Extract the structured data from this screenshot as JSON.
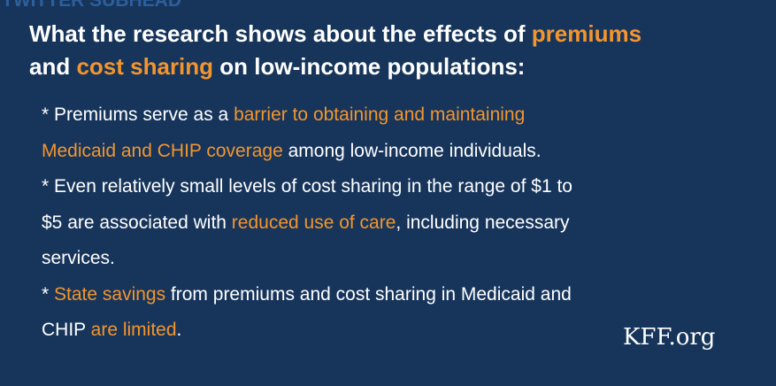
{
  "subhead": "TWITTER SUBHEAD",
  "heading": {
    "lines": [
      [
        {
          "text": "What the research shows about the effects of ",
          "accent": false
        },
        {
          "text": "premiums",
          "accent": true
        }
      ],
      [
        {
          "text": "and ",
          "accent": false
        },
        {
          "text": "cost sharing",
          "accent": true
        },
        {
          "text": " on low-income populations:",
          "accent": false
        }
      ]
    ]
  },
  "bullets": [
    {
      "lines": [
        [
          {
            "text": "* Premiums serve as a ",
            "accent": false
          },
          {
            "text": "barrier to obtaining and maintaining",
            "accent": true
          }
        ],
        [
          {
            "text": "Medicaid and CHIP coverage",
            "accent": true
          },
          {
            "text": " among low-income individuals.",
            "accent": false
          }
        ]
      ]
    },
    {
      "lines": [
        [
          {
            "text": "* Even relatively small levels of cost sharing in the range of $1 to",
            "accent": false
          }
        ],
        [
          {
            "text": "$5 are associated with ",
            "accent": false
          },
          {
            "text": "reduced use of care",
            "accent": true
          },
          {
            "text": ", including necessary",
            "accent": false
          }
        ],
        [
          {
            "text": "services.",
            "accent": false
          }
        ]
      ]
    },
    {
      "lines": [
        [
          {
            "text": "* ",
            "accent": false
          },
          {
            "text": "State savings",
            "accent": true
          },
          {
            "text": " from premiums and cost sharing in Medicaid and",
            "accent": false
          }
        ],
        [
          {
            "text": "CHIP ",
            "accent": false
          },
          {
            "text": "are limited",
            "accent": true
          },
          {
            "text": ".",
            "accent": false
          }
        ]
      ]
    }
  ],
  "brand": "KFF.org"
}
